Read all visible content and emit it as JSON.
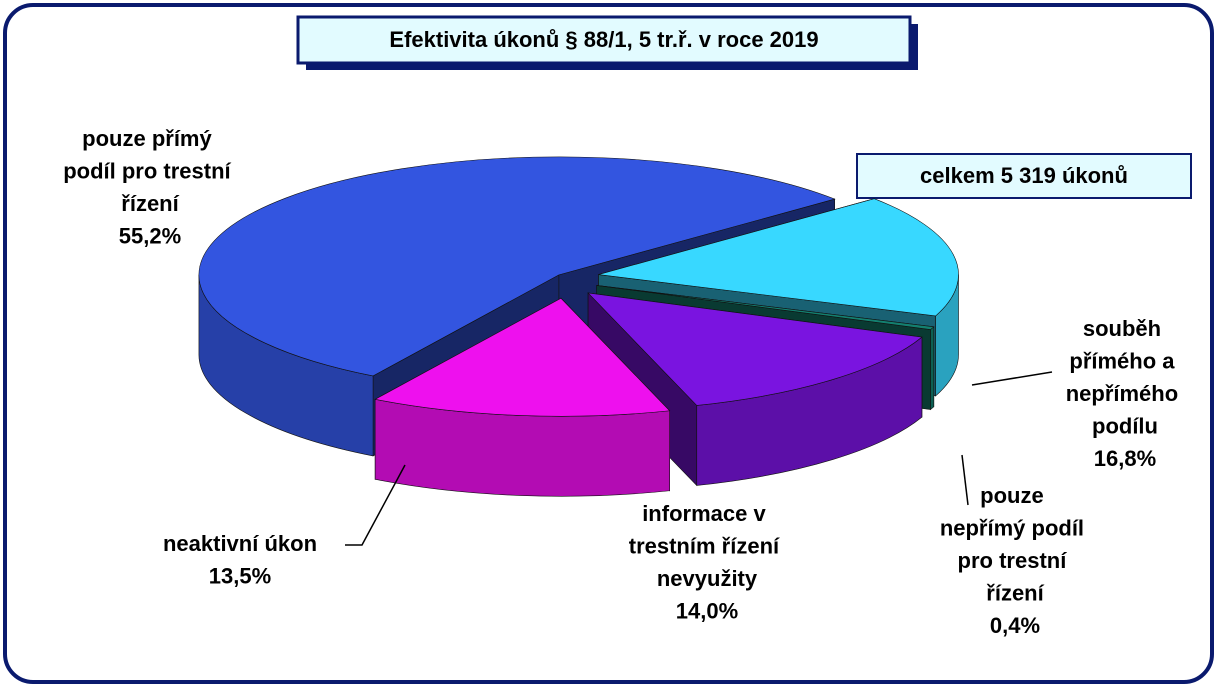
{
  "chart_data": {
    "type": "pie3d",
    "title": "Efektivita úkonů § 88/1, 5 tr.ř.  v roce 2019",
    "annotation": "celkem 5 319 úkonů",
    "categories": [
      "pouze přímý podíl pro trestní řízení",
      "neaktivní úkon",
      "informace v trestním řízení nevyužity",
      "pouze nepřímý podíl pro trestní řízení",
      "souběh přímého a nepřímého podílu"
    ],
    "values": [
      55.2,
      13.5,
      14.0,
      0.4,
      16.8
    ],
    "value_labels": [
      "55,2%",
      "13,5%",
      "14,0%",
      "0,4%",
      "16,8%"
    ],
    "colors": [
      "#3355e0",
      "#ee10ee",
      "#7a14e0",
      "#138070",
      "#38d8ff"
    ]
  }
}
